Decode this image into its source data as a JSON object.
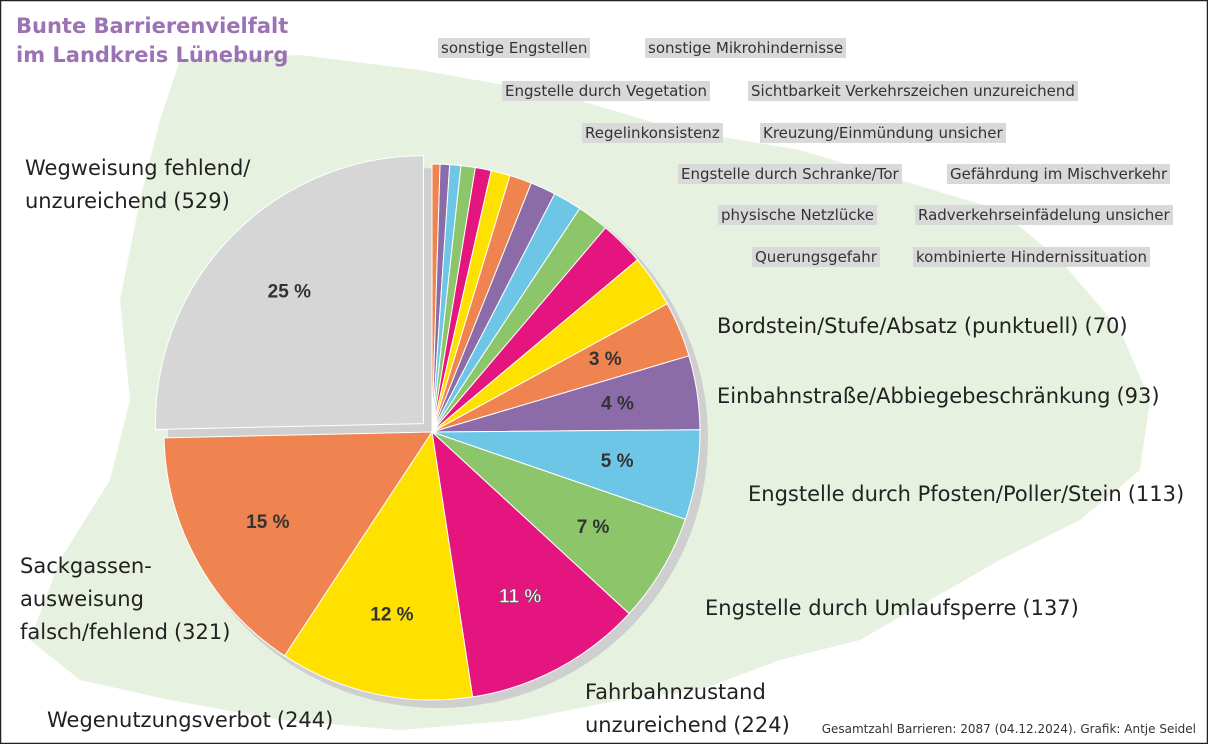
{
  "chart_data": {
    "type": "pie",
    "title": "Bunte Barrierenvielfalt\nim Landkreis Lüneburg",
    "categories": [
      "sonstige Engstellen",
      "sonstige Mikrohindernisse",
      "Engstelle durch Vegetation",
      "Sichtbarkeit Verkehrszeichen unzureichend",
      "Regelinkonsistenz",
      "Kreuzung/Einmündung unsicher",
      "Engstelle durch Schranke/Tor",
      "Gefährdung im Mischverkehr",
      "physische Netzlücke",
      "Radverkehrseinfädelung unsicher",
      "Querungsgefahr",
      "kombinierte Hindernissituation",
      "Bordstein/Stufe/Absatz (punktuell)",
      "Einbahnstraße/Abbiegebeschränkung",
      "Engstelle durch Pfosten/Poller/Stein",
      "Engstelle durch Umlaufsperre",
      "Fahrbahnzustand\nunzureichend",
      "Wegenutzungsverbot",
      "Sackgassen-\nausweisung\nfalsch/fehlend",
      "Wegweisung fehlend/\nunzureichend"
    ],
    "values": [
      10,
      12,
      14,
      18,
      20,
      24,
      28,
      32,
      36,
      40,
      56,
      66,
      70,
      93,
      113,
      137,
      224,
      244,
      321,
      529
    ],
    "value_labels": [
      null,
      null,
      null,
      null,
      null,
      null,
      null,
      null,
      null,
      null,
      null,
      null,
      "(70)",
      "(93)",
      "(113)",
      "(137)",
      "(224)",
      "(244)",
      "(321)",
      "(529)"
    ],
    "percent_labels": [
      null,
      null,
      null,
      null,
      null,
      null,
      null,
      null,
      null,
      null,
      null,
      null,
      "3 %",
      "4 %",
      "5 %",
      "7 %",
      "11 %",
      "12 %",
      "15 %",
      "25 %"
    ],
    "colors": [
      "#ef8450",
      "#8b6ca8",
      "#6ec6e6",
      "#8dc56b",
      "#e5157f",
      "#ffe100",
      "#ef8450",
      "#8b6ca8",
      "#6ec6e6",
      "#8dc56b",
      "#e5157f",
      "#ffe100",
      "#ef8450",
      "#8b6ca8",
      "#6ec6e6",
      "#8dc56b",
      "#e5157f",
      "#ffe100",
      "#ef8450",
      "#d6d6d6"
    ],
    "note": "Gesamtzahl Barrieren: 2087 (04.12.2024). Grafik: Antje Seidel"
  }
}
